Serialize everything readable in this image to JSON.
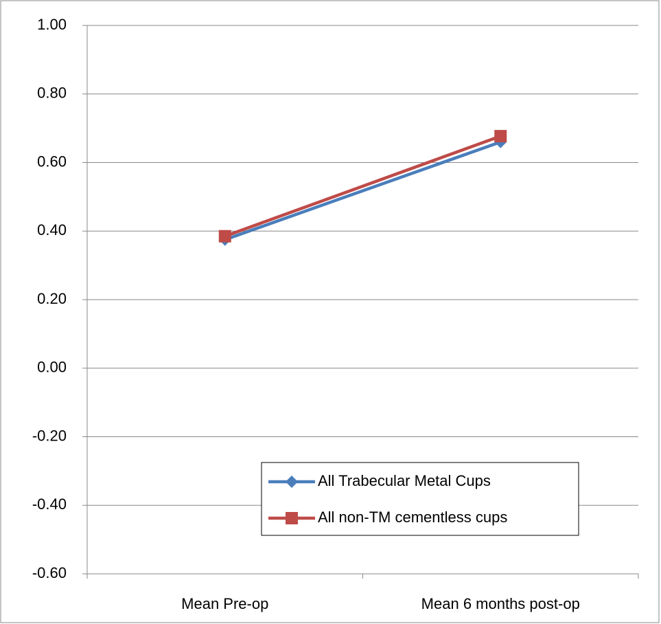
{
  "chart_data": {
    "type": "line",
    "categories": [
      "Mean Pre-op",
      "Mean 6 months post-op"
    ],
    "series": [
      {
        "name": "All Trabecular Metal Cups",
        "color": "#4a7ebb",
        "marker": "diamond",
        "values": [
          0.375,
          0.66
        ]
      },
      {
        "name": "All non-TM cementless cups",
        "color": "#be4b48",
        "marker": "square",
        "values": [
          0.385,
          0.677
        ]
      }
    ],
    "ylim": [
      -0.6,
      1.0
    ],
    "yticks": [
      {
        "value": -0.6,
        "label": "-0.60"
      },
      {
        "value": -0.4,
        "label": "-0.40"
      },
      {
        "value": -0.2,
        "label": "-0.20"
      },
      {
        "value": 0,
        "label": "0.00"
      },
      {
        "value": 0.2,
        "label": "0.20"
      },
      {
        "value": 0.4,
        "label": "0.40"
      },
      {
        "value": 0.6,
        "label": "0.60"
      },
      {
        "value": 0.8,
        "label": "0.80"
      },
      {
        "value": 1.0,
        "label": "1.00"
      }
    ],
    "grid": true
  }
}
